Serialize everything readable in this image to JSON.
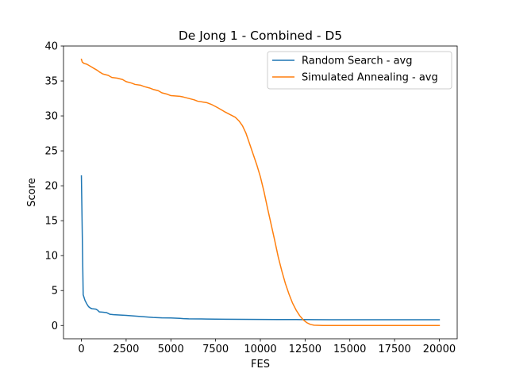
{
  "chart_data": {
    "type": "line",
    "title": "De Jong 1 - Combined - D5",
    "xlabel": "FES",
    "ylabel": "Score",
    "xlim": [
      -1000,
      21000
    ],
    "ylim": [
      -1.9,
      40
    ],
    "xticks": [
      0,
      2500,
      5000,
      7500,
      10000,
      12500,
      15000,
      17500,
      20000
    ],
    "yticks": [
      0,
      5,
      10,
      15,
      20,
      25,
      30,
      35,
      40
    ],
    "grid": false,
    "legend_position": "top-right",
    "series": [
      {
        "name": "Random Search - avg",
        "color": "#1f77b4",
        "points": [
          [
            0,
            21.4
          ],
          [
            100,
            4.4
          ],
          [
            200,
            3.6
          ],
          [
            300,
            3.1
          ],
          [
            400,
            2.7
          ],
          [
            500,
            2.5
          ],
          [
            600,
            2.4
          ],
          [
            800,
            2.35
          ],
          [
            900,
            2.2
          ],
          [
            1000,
            1.95
          ],
          [
            1200,
            1.9
          ],
          [
            1400,
            1.85
          ],
          [
            1600,
            1.6
          ],
          [
            1800,
            1.55
          ],
          [
            2000,
            1.52
          ],
          [
            2500,
            1.45
          ],
          [
            3000,
            1.35
          ],
          [
            3500,
            1.25
          ],
          [
            4000,
            1.15
          ],
          [
            4500,
            1.1
          ],
          [
            5000,
            1.08
          ],
          [
            5500,
            1.02
          ],
          [
            5700,
            0.98
          ],
          [
            6000,
            0.95
          ],
          [
            7000,
            0.93
          ],
          [
            8000,
            0.9
          ],
          [
            9000,
            0.88
          ],
          [
            10000,
            0.87
          ],
          [
            11000,
            0.86
          ],
          [
            12000,
            0.85
          ],
          [
            13000,
            0.84
          ],
          [
            14000,
            0.83
          ],
          [
            15000,
            0.83
          ],
          [
            16000,
            0.83
          ],
          [
            17000,
            0.83
          ],
          [
            18000,
            0.83
          ],
          [
            19000,
            0.83
          ],
          [
            20000,
            0.83
          ]
        ]
      },
      {
        "name": "Simulated Annealing - avg",
        "color": "#ff7f0e",
        "points": [
          [
            0,
            38.1
          ],
          [
            50,
            37.7
          ],
          [
            150,
            37.5
          ],
          [
            300,
            37.4
          ],
          [
            500,
            37.1
          ],
          [
            700,
            36.8
          ],
          [
            900,
            36.5
          ],
          [
            1000,
            36.3
          ],
          [
            1200,
            36.0
          ],
          [
            1500,
            35.8
          ],
          [
            1700,
            35.5
          ],
          [
            2000,
            35.4
          ],
          [
            2300,
            35.2
          ],
          [
            2500,
            34.9
          ],
          [
            2800,
            34.7
          ],
          [
            3000,
            34.5
          ],
          [
            3300,
            34.4
          ],
          [
            3500,
            34.2
          ],
          [
            3800,
            34.0
          ],
          [
            4000,
            33.8
          ],
          [
            4300,
            33.6
          ],
          [
            4500,
            33.3
          ],
          [
            4800,
            33.1
          ],
          [
            5000,
            32.9
          ],
          [
            5500,
            32.8
          ],
          [
            5700,
            32.7
          ],
          [
            6000,
            32.5
          ],
          [
            6300,
            32.3
          ],
          [
            6500,
            32.1
          ],
          [
            7000,
            31.9
          ],
          [
            7300,
            31.6
          ],
          [
            7600,
            31.2
          ],
          [
            8000,
            30.6
          ],
          [
            8300,
            30.2
          ],
          [
            8600,
            29.8
          ],
          [
            8800,
            29.3
          ],
          [
            9000,
            28.6
          ],
          [
            9200,
            27.5
          ],
          [
            9400,
            26.0
          ],
          [
            9600,
            24.5
          ],
          [
            9800,
            23.0
          ],
          [
            10000,
            21.3
          ],
          [
            10200,
            19.2
          ],
          [
            10400,
            16.8
          ],
          [
            10600,
            14.5
          ],
          [
            10800,
            12.2
          ],
          [
            11000,
            9.8
          ],
          [
            11200,
            7.8
          ],
          [
            11400,
            6.0
          ],
          [
            11600,
            4.5
          ],
          [
            11800,
            3.2
          ],
          [
            12000,
            2.2
          ],
          [
            12200,
            1.4
          ],
          [
            12400,
            0.8
          ],
          [
            12600,
            0.4
          ],
          [
            12800,
            0.15
          ],
          [
            13000,
            0.05
          ],
          [
            13500,
            0.0
          ],
          [
            14000,
            0.0
          ],
          [
            15000,
            0.0
          ],
          [
            16000,
            0.0
          ],
          [
            17000,
            0.0
          ],
          [
            18000,
            0.0
          ],
          [
            19000,
            0.0
          ],
          [
            20000,
            0.0
          ]
        ]
      }
    ]
  }
}
